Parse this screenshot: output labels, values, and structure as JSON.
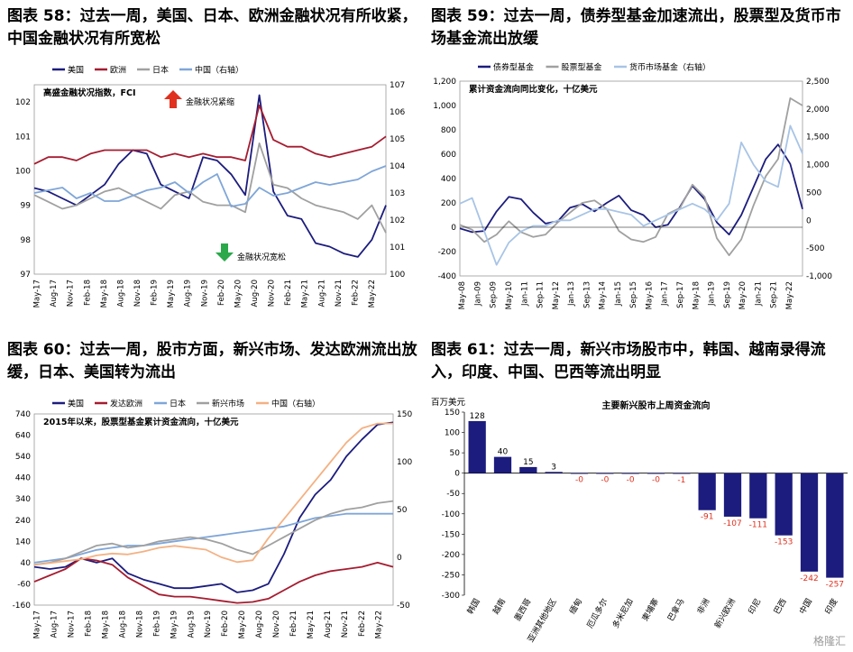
{
  "panels": [
    {
      "title": "图表 58：过去一周，美国、日本、欧洲金融状况有所收紧，中国金融状况有所宽松",
      "chart_data": {
        "type": "line",
        "subtitle": "高盛金融状况指数，FCI",
        "x_ticks": [
          "May-17",
          "Aug-17",
          "Nov-17",
          "Feb-18",
          "May-18",
          "Aug-18",
          "Nov-18",
          "Feb-19",
          "May-19",
          "Aug-19",
          "Nov-19",
          "Feb-20",
          "May-20",
          "Aug-20",
          "Nov-20",
          "Feb-21",
          "May-21",
          "Aug-21",
          "Nov-21",
          "Feb-22",
          "May-22"
        ],
        "ylim_left": [
          97,
          102.5
        ],
        "yticks_left": [
          97,
          98,
          99,
          100,
          101,
          102
        ],
        "ylim_right": [
          100,
          107
        ],
        "yticks_right": [
          100,
          101,
          102,
          103,
          104,
          105,
          106,
          107
        ],
        "annotations": [
          {
            "text": "金融状况紧缩",
            "arrow": "up",
            "color": "#E0301E"
          },
          {
            "text": "金融状况宽松",
            "arrow": "down",
            "color": "#2AA84A"
          }
        ],
        "series": [
          {
            "name": "美国",
            "axis": "left",
            "color": "#1C1C7E",
            "values": [
              99.5,
              99.4,
              99.2,
              99.0,
              99.3,
              99.6,
              100.2,
              100.6,
              100.5,
              99.6,
              99.4,
              99.2,
              100.4,
              100.3,
              99.9,
              99.3,
              102.2,
              99.4,
              98.7,
              98.6,
              97.9,
              97.8,
              97.6,
              97.5,
              98.0,
              99.0
            ]
          },
          {
            "name": "欧洲",
            "axis": "left",
            "color": "#A51C30",
            "values": [
              100.2,
              100.4,
              100.4,
              100.3,
              100.5,
              100.6,
              100.6,
              100.6,
              100.6,
              100.4,
              100.5,
              100.4,
              100.5,
              100.4,
              100.4,
              100.3,
              101.9,
              100.9,
              100.7,
              100.7,
              100.5,
              100.4,
              100.5,
              100.6,
              100.7,
              101.0
            ]
          },
          {
            "name": "日本",
            "axis": "left",
            "color": "#A0A0A0",
            "values": [
              99.3,
              99.1,
              98.9,
              99.0,
              99.2,
              99.4,
              99.5,
              99.3,
              99.1,
              98.9,
              99.3,
              99.4,
              99.1,
              99.0,
              99.0,
              98.8,
              100.8,
              99.6,
              99.5,
              99.2,
              99.0,
              98.9,
              98.8,
              98.6,
              99.0,
              98.2
            ]
          },
          {
            "name": "中国（右轴）",
            "axis": "right",
            "color": "#7FA6D8",
            "values": [
              103.0,
              103.1,
              103.2,
              102.8,
              103.0,
              102.7,
              102.7,
              102.9,
              103.1,
              103.2,
              103.4,
              103.0,
              103.4,
              103.7,
              102.5,
              102.6,
              103.2,
              102.9,
              103.0,
              103.2,
              103.4,
              103.3,
              103.4,
              103.5,
              103.8,
              104.0
            ]
          }
        ]
      }
    },
    {
      "title": "图表 59：过去一周，债券型基金加速流出，股票型及货币市场基金流出放缓",
      "chart_data": {
        "type": "line",
        "subtitle": "累计资金流向同比变化，十亿美元",
        "x_ticks": [
          "May-08",
          "Jan-09",
          "Sep-09",
          "May-10",
          "Jan-11",
          "Sep-11",
          "May-12",
          "Jan-13",
          "Sep-13",
          "May-14",
          "Jan-15",
          "Sep-15",
          "May-16",
          "Jan-17",
          "Sep-17",
          "May-18",
          "Jan-19",
          "Sep-19",
          "May-20",
          "Jan-21",
          "Sep-21",
          "May-22"
        ],
        "ylim_left": [
          -400,
          1200
        ],
        "yticks_left": [
          -400,
          -200,
          0,
          200,
          400,
          600,
          800,
          1000,
          1200
        ],
        "ylim_right": [
          -1000,
          2500
        ],
        "yticks_right": [
          -1000,
          -500,
          0,
          500,
          1000,
          1500,
          2000,
          2500
        ],
        "series": [
          {
            "name": "债券型基金",
            "axis": "left",
            "color": "#1C1C7E",
            "values": [
              -10,
              -40,
              -30,
              130,
              250,
              230,
              120,
              30,
              50,
              160,
              190,
              130,
              200,
              260,
              140,
              100,
              0,
              20,
              170,
              340,
              230,
              40,
              -60,
              100,
              330,
              560,
              680,
              520,
              150
            ]
          },
          {
            "name": "股票型基金",
            "axis": "left",
            "color": "#A0A0A0",
            "values": [
              20,
              -20,
              -120,
              -60,
              50,
              -40,
              -80,
              -60,
              40,
              120,
              200,
              220,
              150,
              -30,
              -100,
              -120,
              -80,
              110,
              160,
              350,
              250,
              -90,
              -230,
              -100,
              180,
              420,
              560,
              1060,
              1000
            ]
          },
          {
            "name": "货币市场基金（右轴）",
            "axis": "right",
            "color": "#A8C4E6",
            "values": [
              300,
              400,
              -200,
              -800,
              -400,
              -200,
              -100,
              -100,
              0,
              0,
              100,
              200,
              200,
              150,
              100,
              -100,
              0,
              100,
              200,
              300,
              200,
              0,
              300,
              1400,
              1000,
              700,
              600,
              1700,
              1200
            ]
          }
        ]
      }
    },
    {
      "title": "图表 60：过去一周，股市方面，新兴市场、发达欧洲流出放缓，日本、美国转为流出",
      "chart_data": {
        "type": "line",
        "subtitle": "2015年以来，股票型基金累计资金流向，十亿美元",
        "x_ticks": [
          "May-17",
          "Aug-17",
          "Nov-17",
          "Feb-18",
          "May-18",
          "Aug-18",
          "Nov-18",
          "Feb-19",
          "May-19",
          "Aug-19",
          "Nov-19",
          "Feb-20",
          "May-20",
          "Aug-20",
          "Nov-20",
          "Feb-21",
          "May-21",
          "Aug-21",
          "Nov-21",
          "Feb-22",
          "May-22"
        ],
        "ylim_left": [
          -160,
          740
        ],
        "yticks_left": [
          -160,
          -60,
          40,
          140,
          240,
          340,
          440,
          540,
          640,
          740
        ],
        "ylim_right": [
          -50,
          150
        ],
        "yticks_right": [
          -50,
          0,
          50,
          100,
          150
        ],
        "series": [
          {
            "name": "美国",
            "axis": "left",
            "color": "#1C1C7E",
            "values": [
              20,
              10,
              20,
              60,
              40,
              60,
              -10,
              -40,
              -60,
              -80,
              -80,
              -70,
              -60,
              -100,
              -90,
              -60,
              80,
              250,
              360,
              430,
              540,
              620,
              690,
              700
            ]
          },
          {
            "name": "发达欧洲",
            "axis": "left",
            "color": "#A51C30",
            "values": [
              -50,
              -20,
              10,
              60,
              50,
              30,
              -30,
              -70,
              -110,
              -120,
              -120,
              -130,
              -140,
              -150,
              -145,
              -130,
              -90,
              -50,
              -20,
              0,
              10,
              20,
              40,
              20
            ]
          },
          {
            "name": "日本",
            "axis": "left",
            "color": "#7FA6D8",
            "values": [
              40,
              50,
              60,
              80,
              100,
              110,
              120,
              120,
              130,
              140,
              150,
              160,
              170,
              180,
              190,
              200,
              210,
              230,
              250,
              260,
              270,
              270,
              270,
              270
            ]
          },
          {
            "name": "新兴市场",
            "axis": "left",
            "color": "#A0A0A0",
            "values": [
              30,
              40,
              60,
              90,
              120,
              130,
              110,
              120,
              140,
              150,
              160,
              150,
              130,
              100,
              80,
              120,
              160,
              200,
              240,
              270,
              290,
              300,
              320,
              330
            ]
          },
          {
            "name": "中国（右轴）",
            "axis": "right",
            "color": "#F4B183",
            "values": [
              -8,
              -6,
              -4,
              -2,
              2,
              4,
              3,
              6,
              10,
              12,
              10,
              8,
              0,
              -5,
              -3,
              20,
              40,
              60,
              80,
              100,
              120,
              135,
              140,
              140
            ]
          }
        ]
      }
    },
    {
      "title": "图表 61：过去一周，新兴市场股市中，韩国、越南录得流入，印度、中国、巴西等流出明显",
      "chart_data": {
        "type": "bar",
        "title": "主要新兴股市上周资金流向",
        "ylabel": "百万美元",
        "ylim": [
          -300,
          150
        ],
        "yticks": [
          -300,
          -250,
          -200,
          -150,
          -100,
          -50,
          0,
          50,
          100,
          150
        ],
        "categories": [
          "韩国",
          "越南",
          "墨西哥",
          "亚洲其他地区",
          "缅甸",
          "厄瓜多尔",
          "多米尼加",
          "柬埔寨",
          "巴拿马",
          "非洲",
          "新兴欧洲",
          "印尼",
          "巴西",
          "中国",
          "印度"
        ],
        "values": [
          128,
          40,
          15,
          3,
          0,
          0,
          0,
          0,
          -1,
          -91,
          -107,
          -111,
          -153,
          -242,
          -257
        ],
        "data_labels": [
          "128",
          "40",
          "15",
          "3",
          "-0",
          "-0",
          "-0",
          "-0",
          "-1",
          "-91",
          "-107",
          "-111",
          "-153",
          "-242",
          "-257"
        ],
        "bar_color": "#1C1C7E",
        "label_color_positive": "#000000",
        "label_color_negative": "#E0301E"
      }
    }
  ],
  "footer": {
    "logo": "格隆汇"
  }
}
